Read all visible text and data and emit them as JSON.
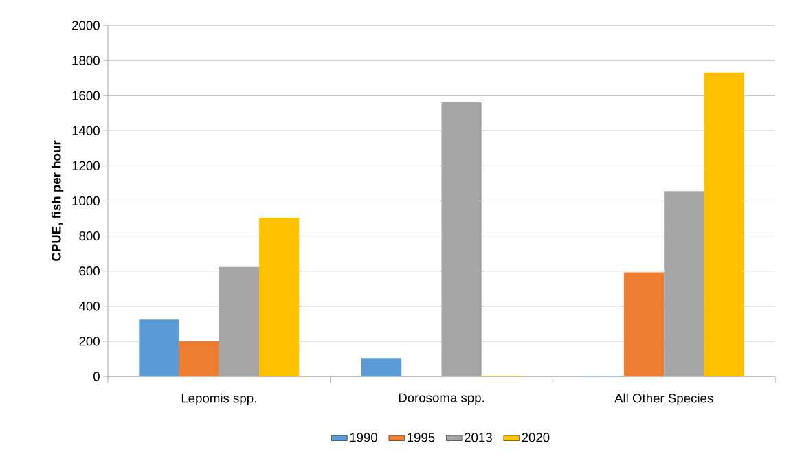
{
  "chart_data": {
    "type": "bar",
    "ylabel": "CPUE, fish per hour",
    "categories": [
      "Lepomis spp.",
      "Dorosoma spp.",
      "All Other Species"
    ],
    "series": [
      {
        "name": "1990",
        "color": "#5b9bd5",
        "values": [
          324,
          105,
          3
        ]
      },
      {
        "name": "1995",
        "color": "#ed7d31",
        "values": [
          201,
          0,
          593
        ]
      },
      {
        "name": "2013",
        "color": "#a5a5a5",
        "values": [
          623,
          1562,
          1056
        ]
      },
      {
        "name": "2020",
        "color": "#ffc000",
        "values": [
          904,
          3,
          1731
        ]
      }
    ],
    "ylim": [
      0,
      2000
    ],
    "yticks": [
      0,
      200,
      400,
      600,
      800,
      1000,
      1200,
      1400,
      1600,
      1800,
      2000
    ],
    "grid": "y",
    "legend": "bottom"
  }
}
